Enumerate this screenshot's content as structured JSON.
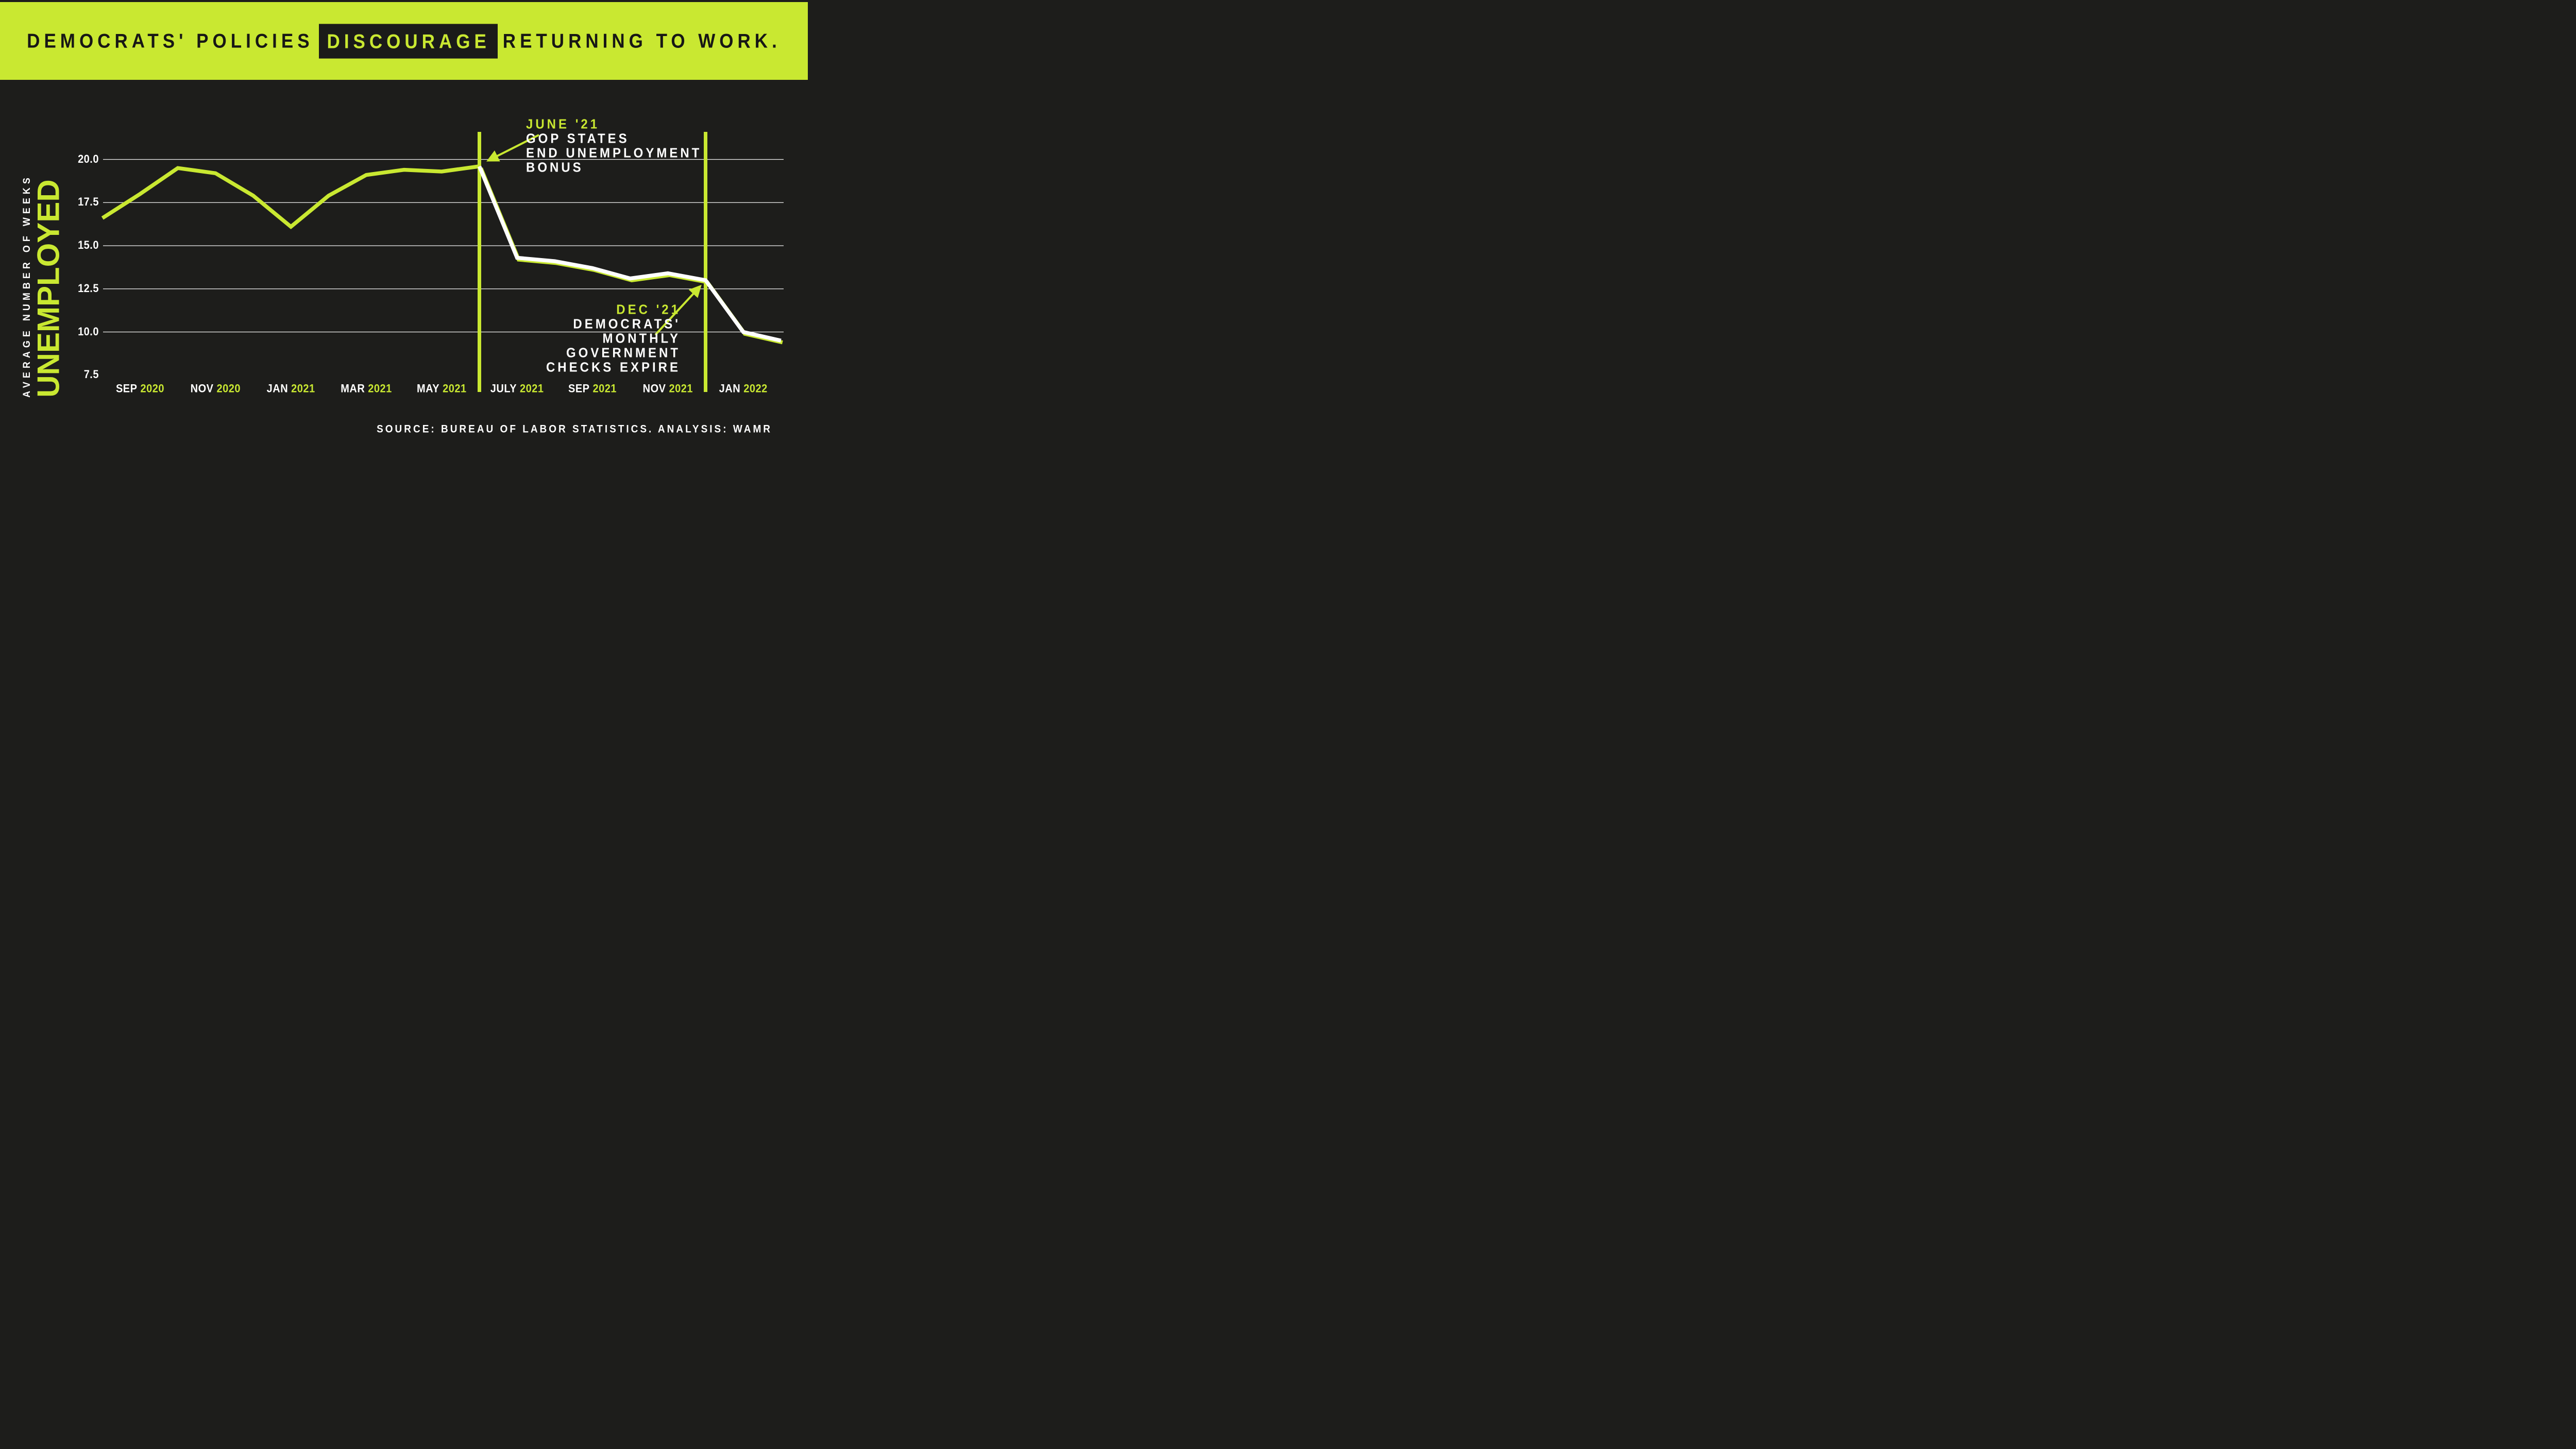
{
  "header": {
    "title_prefix": "DEMOCRATS' POLICIES",
    "title_highlight": "DISCOURAGE",
    "title_suffix": "RETURNING TO WORK."
  },
  "colors": {
    "lime": "#c9e831",
    "background": "#1d1d1b",
    "white": "#ffffff",
    "title_text": "#171715"
  },
  "y_axis": {
    "label_small": "AVERAGE NUMBER OF WEEKS",
    "label_large": "UNEMPLOYED",
    "tick_labels": [
      "20.0",
      "17.5",
      "15.0",
      "12.5",
      "10.0",
      "7.5"
    ],
    "tick_values": [
      20.0,
      17.5,
      15.0,
      12.5,
      10.0,
      7.5
    ],
    "gridline_values": [
      20.0,
      17.5,
      15.0,
      12.5,
      10.0
    ]
  },
  "x_axis": {
    "labels": [
      {
        "month": "SEP",
        "year": "2020",
        "month_index": 1
      },
      {
        "month": "NOV",
        "year": "2020",
        "month_index": 3
      },
      {
        "month": "JAN",
        "year": "2021",
        "month_index": 5
      },
      {
        "month": "MAR",
        "year": "2021",
        "month_index": 7
      },
      {
        "month": "MAY",
        "year": "2021",
        "month_index": 9
      },
      {
        "month": "JULY",
        "year": "2021",
        "month_index": 11
      },
      {
        "month": "SEP",
        "year": "2021",
        "month_index": 13
      },
      {
        "month": "NOV",
        "year": "2021",
        "month_index": 15
      },
      {
        "month": "JAN",
        "year": "2022",
        "month_index": 17
      }
    ]
  },
  "annotations": {
    "june": {
      "heading": "JUNE '21",
      "lines": [
        "GOP STATES",
        "END UNEMPLOYMENT",
        "BONUS"
      ]
    },
    "dec": {
      "heading": "DEC '21",
      "lines": [
        "DEMOCRATS'",
        "MONTHLY",
        "GOVERNMENT",
        "CHECKS EXPIRE"
      ]
    }
  },
  "source": "SOURCE: BUREAU OF LABOR STATISTICS. ANALYSIS: WAMR",
  "chart_data": {
    "type": "line",
    "title": "DEMOCRATS' POLICIES DISCOURAGE RETURNING TO WORK.",
    "xlabel": "",
    "ylabel": "AVERAGE NUMBER OF WEEKS UNEMPLOYED",
    "ylim": [
      7.5,
      20.0
    ],
    "yticks": [
      20.0,
      17.5,
      15.0,
      12.5,
      10.0,
      7.5
    ],
    "grid": true,
    "legend": false,
    "months": [
      "AUG 2020",
      "SEP 2020",
      "OCT 2020",
      "NOV 2020",
      "DEC 2020",
      "JAN 2021",
      "FEB 2021",
      "MAR 2021",
      "APR 2021",
      "MAY 2021",
      "JUN 2021",
      "JUL 2021",
      "AUG 2021",
      "SEP 2021",
      "OCT 2021",
      "NOV 2021",
      "DEC 2021",
      "JAN 2022",
      "FEB 2022"
    ],
    "series": [
      {
        "name": "before unemployment bonus ends (lime segment)",
        "color": "#c9e831",
        "start_index": 0,
        "values": [
          16.6,
          18.0,
          19.5,
          19.2,
          17.9,
          16.1,
          17.9,
          19.1,
          19.4,
          19.3,
          19.6
        ]
      },
      {
        "name": "after unemployment bonus ends (white segment)",
        "color": "#ffffff",
        "start_index": 10,
        "values": [
          19.6,
          14.3,
          14.1,
          13.7,
          13.1,
          13.4,
          13.0,
          10.0,
          9.5
        ]
      }
    ],
    "events": [
      {
        "label": "JUNE '21 GOP STATES END UNEMPLOYMENT BONUS",
        "month": "JUN 2021",
        "month_index": 10,
        "value": 19.6
      },
      {
        "label": "DEC '21 DEMOCRATS' MONTHLY GOVERNMENT CHECKS EXPIRE",
        "month": "DEC 2021",
        "month_index": 16,
        "value": 13.0
      }
    ]
  }
}
